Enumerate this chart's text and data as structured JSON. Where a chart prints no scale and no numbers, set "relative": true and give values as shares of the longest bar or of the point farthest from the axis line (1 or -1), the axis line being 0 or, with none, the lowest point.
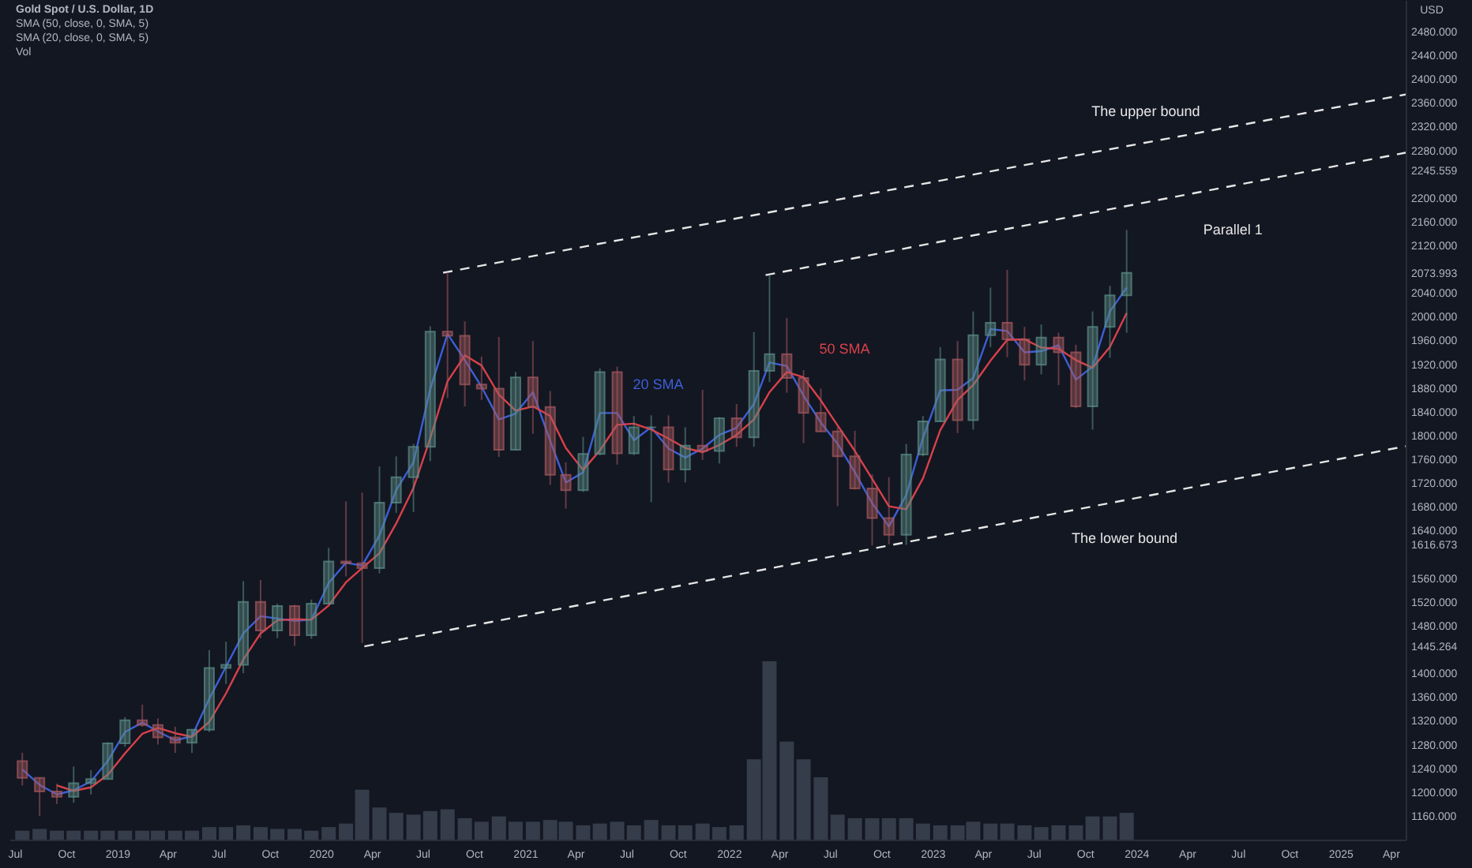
{
  "chart_data": [
    {
      "type": "candlestick",
      "title": "Gold Spot / U.S. Dollar, 1D",
      "ylabel": "USD",
      "x": [
        "2018-07-15",
        "2018-08-15",
        "2018-09-15",
        "2018-10-15",
        "2018-11-15",
        "2018-12-15",
        "2019-01-15",
        "2019-02-15",
        "2019-03-15",
        "2019-04-15",
        "2019-05-15",
        "2019-06-15",
        "2019-07-15",
        "2019-08-15",
        "2019-09-15",
        "2019-10-15",
        "2019-11-15",
        "2019-12-15",
        "2020-01-15",
        "2020-02-15",
        "2020-03-15",
        "2020-04-15",
        "2020-05-15",
        "2020-06-15",
        "2020-07-15",
        "2020-08-15",
        "2020-09-15",
        "2020-10-15",
        "2020-11-15",
        "2020-12-15",
        "2021-01-15",
        "2021-02-15",
        "2021-03-15",
        "2021-04-15",
        "2021-05-15",
        "2021-06-15",
        "2021-07-15",
        "2021-08-15",
        "2021-09-15",
        "2021-10-15",
        "2021-11-15",
        "2021-12-15",
        "2022-01-15",
        "2022-02-15",
        "2022-03-15",
        "2022-04-15",
        "2022-05-15",
        "2022-06-15",
        "2022-07-15",
        "2022-08-15",
        "2022-09-15",
        "2022-10-15",
        "2022-11-15",
        "2022-12-15",
        "2023-01-15",
        "2023-02-15",
        "2023-03-15",
        "2023-04-15",
        "2023-05-15",
        "2023-06-15",
        "2023-07-15",
        "2023-08-15",
        "2023-09-15",
        "2023-10-15",
        "2023-11-15",
        "2023-12-15"
      ],
      "ohlc": [
        [
          1252,
          1266,
          1211,
          1224
        ],
        [
          1224,
          1224,
          1160,
          1201
        ],
        [
          1201,
          1214,
          1180,
          1192
        ],
        [
          1192,
          1243,
          1182,
          1215
        ],
        [
          1215,
          1237,
          1196,
          1222
        ],
        [
          1222,
          1284,
          1221,
          1282
        ],
        [
          1282,
          1326,
          1276,
          1321
        ],
        [
          1321,
          1347,
          1310,
          1313
        ],
        [
          1313,
          1324,
          1280,
          1292
        ],
        [
          1292,
          1310,
          1266,
          1283
        ],
        [
          1283,
          1306,
          1266,
          1305
        ],
        [
          1305,
          1439,
          1301,
          1409
        ],
        [
          1409,
          1453,
          1382,
          1414
        ],
        [
          1414,
          1555,
          1400,
          1520
        ],
        [
          1520,
          1557,
          1459,
          1472
        ],
        [
          1472,
          1517,
          1459,
          1513
        ],
        [
          1513,
          1515,
          1446,
          1464
        ],
        [
          1464,
          1524,
          1458,
          1517
        ],
        [
          1517,
          1611,
          1517,
          1588
        ],
        [
          1588,
          1689,
          1563,
          1585
        ],
        [
          1585,
          1704,
          1451,
          1577
        ],
        [
          1577,
          1748,
          1568,
          1687
        ],
        [
          1687,
          1765,
          1670,
          1730
        ],
        [
          1730,
          1786,
          1671,
          1781
        ],
        [
          1781,
          1984,
          1757,
          1975
        ],
        [
          1975,
          2075,
          1863,
          1968
        ],
        [
          1968,
          1992,
          1849,
          1886
        ],
        [
          1886,
          1933,
          1860,
          1879
        ],
        [
          1879,
          1966,
          1764,
          1776
        ],
        [
          1776,
          1907,
          1775,
          1898
        ],
        [
          1898,
          1959,
          1803,
          1848
        ],
        [
          1848,
          1875,
          1717,
          1734
        ],
        [
          1734,
          1755,
          1677,
          1708
        ],
        [
          1708,
          1798,
          1705,
          1769
        ],
        [
          1769,
          1913,
          1767,
          1907
        ],
        [
          1907,
          1916,
          1751,
          1770
        ],
        [
          1770,
          1833,
          1767,
          1814
        ],
        [
          1814,
          1834,
          1688,
          1814
        ],
        [
          1814,
          1834,
          1721,
          1743
        ],
        [
          1743,
          1814,
          1721,
          1783
        ],
        [
          1783,
          1877,
          1759,
          1774
        ],
        [
          1774,
          1831,
          1753,
          1829
        ],
        [
          1829,
          1853,
          1781,
          1797
        ],
        [
          1797,
          1974,
          1781,
          1909
        ],
        [
          1909,
          2070,
          1890,
          1937
        ],
        [
          1937,
          1998,
          1872,
          1897
        ],
        [
          1897,
          1910,
          1787,
          1838
        ],
        [
          1838,
          1879,
          1806,
          1807
        ],
        [
          1807,
          1814,
          1681,
          1765
        ],
        [
          1765,
          1808,
          1709,
          1711
        ],
        [
          1711,
          1735,
          1615,
          1661
        ],
        [
          1661,
          1730,
          1617,
          1633
        ],
        [
          1633,
          1786,
          1616,
          1768
        ],
        [
          1768,
          1833,
          1765,
          1824
        ],
        [
          1824,
          1949,
          1823,
          1928
        ],
        [
          1928,
          1959,
          1804,
          1826
        ],
        [
          1826,
          2009,
          1810,
          1969
        ],
        [
          1969,
          2049,
          1949,
          1990
        ],
        [
          1990,
          2079,
          1932,
          1962
        ],
        [
          1962,
          1983,
          1893,
          1919
        ],
        [
          1919,
          1987,
          1903,
          1965
        ],
        [
          1965,
          1973,
          1885,
          1940
        ],
        [
          1940,
          1953,
          1846,
          1849
        ],
        [
          1849,
          2009,
          1810,
          1983
        ],
        [
          1983,
          2052,
          1931,
          2036
        ],
        [
          2036,
          2146,
          1973,
          2074
        ]
      ],
      "colors": [
        "#a85a60",
        "#a85a60",
        "#a85a60",
        "#5d8f88",
        "#5d8f88",
        "#5d8f88",
        "#5d8f88",
        "#a85a60",
        "#a85a60",
        "#a85a60",
        "#5d8f88",
        "#5d8f88",
        "#5d8f88",
        "#5d8f88",
        "#a85a60",
        "#5d8f88",
        "#a85a60",
        "#5d8f88",
        "#5d8f88",
        "#a85a60",
        "#a85a60",
        "#5d8f88",
        "#5d8f88",
        "#5d8f88",
        "#5d8f88",
        "#a85a60",
        "#a85a60",
        "#a85a60",
        "#a85a60",
        "#5d8f88",
        "#a85a60",
        "#a85a60",
        "#a85a60",
        "#5d8f88",
        "#5d8f88",
        "#a85a60",
        "#5d8f88",
        "#5d8f88",
        "#a85a60",
        "#5d8f88",
        "#a85a60",
        "#5d8f88",
        "#a85a60",
        "#5d8f88",
        "#5d8f88",
        "#a85a60",
        "#a85a60",
        "#a85a60",
        "#a85a60",
        "#a85a60",
        "#a85a60",
        "#a85a60",
        "#5d8f88",
        "#5d8f88",
        "#5d8f88",
        "#a85a60",
        "#5d8f88",
        "#5d8f88",
        "#a85a60",
        "#a85a60",
        "#5d8f88",
        "#a85a60",
        "#a85a60",
        "#5d8f88",
        "#5d8f88",
        "#5d8f88"
      ],
      "series": [
        {
          "name": "20 SMA",
          "type": "line",
          "color": "#3d5fd6",
          "values": [
            1238,
            1212,
            1196,
            1203,
            1218,
            1252,
            1301,
            1317,
            1302,
            1287,
            1294,
            1357,
            1411,
            1467,
            1496,
            1492,
            1488,
            1490,
            1552,
            1586,
            1581,
            1632,
            1708,
            1755,
            1878,
            1971,
            1927,
            1882,
            1827,
            1837,
            1873,
            1791,
            1721,
            1738,
            1838,
            1838,
            1792,
            1814,
            1778,
            1763,
            1778,
            1801,
            1813,
            1853,
            1923,
            1917,
            1867,
            1822,
            1786,
            1738,
            1686,
            1647,
            1700,
            1796,
            1876,
            1877,
            1897,
            1979,
            1976,
            1940,
            1942,
            1952,
            1894,
            1916,
            2009,
            2049
          ]
        },
        {
          "name": "50 SMA",
          "type": "line",
          "color": "#d9414a",
          "values": [
            null,
            null,
            1211,
            1202,
            1208,
            1229,
            1265,
            1298,
            1308,
            1299,
            1293,
            1318,
            1366,
            1423,
            1467,
            1489,
            1491,
            1490,
            1514,
            1553,
            1577,
            1602,
            1652,
            1712,
            1795,
            1891,
            1935,
            1918,
            1869,
            1842,
            1849,
            1833,
            1779,
            1742,
            1775,
            1818,
            1820,
            1810,
            1795,
            1779,
            1772,
            1784,
            1801,
            1827,
            1873,
            1907,
            1898,
            1859,
            1817,
            1774,
            1727,
            1681,
            1676,
            1728,
            1809,
            1860,
            1885,
            1926,
            1961,
            1962,
            1948,
            1946,
            1927,
            1914,
            1949,
            2006
          ]
        },
        {
          "name": "The upper bound",
          "type": "line",
          "color": "#e6e6e6",
          "line_style": "dashed",
          "x": [
            "2020-08-07",
            "2025-04-28"
          ],
          "values": [
            2073.993,
            2374
          ]
        },
        {
          "name": "Parallel 1",
          "type": "line",
          "color": "#e6e6e6",
          "line_style": "dashed",
          "x": [
            "2022-03-08",
            "2025-04-28"
          ],
          "values": [
            2070,
            2276
          ]
        },
        {
          "name": "The lower bound",
          "type": "line",
          "color": "#e6e6e6",
          "line_style": "dashed",
          "x": [
            "2020-03-19",
            "2025-04-28"
          ],
          "values": [
            1445.264,
            1782
          ]
        }
      ],
      "xlim": [
        "2018-06-22",
        "2025-04-28"
      ],
      "ylim": [
        1120,
        2533
      ],
      "xticks": [
        {
          "value": "2018-07-01",
          "label": "Jul"
        },
        {
          "value": "2018-10-01",
          "label": "Oct"
        },
        {
          "value": "2019-01-01",
          "label": "2019"
        },
        {
          "value": "2019-04-01",
          "label": "Apr"
        },
        {
          "value": "2019-07-01",
          "label": "Jul"
        },
        {
          "value": "2019-10-01",
          "label": "Oct"
        },
        {
          "value": "2020-01-01",
          "label": "2020"
        },
        {
          "value": "2020-04-01",
          "label": "Apr"
        },
        {
          "value": "2020-07-01",
          "label": "Jul"
        },
        {
          "value": "2020-10-01",
          "label": "Oct"
        },
        {
          "value": "2021-01-01",
          "label": "2021"
        },
        {
          "value": "2021-04-01",
          "label": "Apr"
        },
        {
          "value": "2021-07-01",
          "label": "Jul"
        },
        {
          "value": "2021-10-01",
          "label": "Oct"
        },
        {
          "value": "2022-01-01",
          "label": "2022"
        },
        {
          "value": "2022-04-01",
          "label": "Apr"
        },
        {
          "value": "2022-07-01",
          "label": "Jul"
        },
        {
          "value": "2022-10-01",
          "label": "Oct"
        },
        {
          "value": "2023-01-01",
          "label": "2023"
        },
        {
          "value": "2023-04-01",
          "label": "Apr"
        },
        {
          "value": "2023-07-01",
          "label": "Jul"
        },
        {
          "value": "2023-10-01",
          "label": "Oct"
        },
        {
          "value": "2024-01-01",
          "label": "2024"
        },
        {
          "value": "2024-04-01",
          "label": "Apr"
        },
        {
          "value": "2024-07-01",
          "label": "Jul"
        },
        {
          "value": "2024-10-01",
          "label": "Oct"
        },
        {
          "value": "2025-01-01",
          "label": "2025"
        },
        {
          "value": "2025-04-01",
          "label": "Apr"
        }
      ],
      "yticks": [
        {
          "value": 2480,
          "label": "2480.000"
        },
        {
          "value": 2440,
          "label": "2440.000"
        },
        {
          "value": 2400,
          "label": "2400.000"
        },
        {
          "value": 2360,
          "label": "2360.000"
        },
        {
          "value": 2320,
          "label": "2320.000"
        },
        {
          "value": 2280,
          "label": "2280.000"
        },
        2245.559,
        {
          "value": 2200,
          "label": "2200.000"
        },
        {
          "value": 2160,
          "label": "2160.000"
        },
        {
          "value": 2120,
          "label": "2120.000"
        },
        2073.993,
        {
          "value": 2040,
          "label": "2040.000"
        },
        {
          "value": 2000,
          "label": "2000.000"
        },
        {
          "value": 1960,
          "label": "1960.000"
        },
        {
          "value": 1920,
          "label": "1920.000"
        },
        {
          "value": 1880,
          "label": "1880.000"
        },
        {
          "value": 1840,
          "label": "1840.000"
        },
        {
          "value": 1800,
          "label": "1800.000"
        },
        {
          "value": 1760,
          "label": "1760.000"
        },
        {
          "value": 1720,
          "label": "1720.000"
        },
        {
          "value": 1680,
          "label": "1680.000"
        },
        {
          "value": 1640,
          "label": "1640.000"
        },
        1616.673,
        {
          "value": 1560,
          "label": "1560.000"
        },
        {
          "value": 1520,
          "label": "1520.000"
        },
        {
          "value": 1480,
          "label": "1480.000"
        },
        1445.264,
        {
          "value": 1400,
          "label": "1400.000"
        },
        {
          "value": 1360,
          "label": "1360.000"
        },
        {
          "value": 1320,
          "label": "1320.000"
        },
        {
          "value": 1280,
          "label": "1280.000"
        },
        {
          "value": 1240,
          "label": "1240.000"
        },
        {
          "value": 1200,
          "label": "1200.000"
        },
        {
          "value": 1160,
          "label": "1160.000"
        }
      ],
      "annotations": [
        "SMA (50, close, 0, SMA, 5)",
        "SMA (20, close, 0, SMA, 5)",
        "Vol"
      ]
    },
    {
      "type": "bar",
      "relative": true,
      "color": "#3a4150",
      "xlim": [
        "2018-06-22",
        "2025-04-28"
      ],
      "x": [
        "2018-07-15",
        "2018-08-15",
        "2018-09-15",
        "2018-10-15",
        "2018-11-15",
        "2018-12-15",
        "2019-01-15",
        "2019-02-15",
        "2019-03-15",
        "2019-04-15",
        "2019-05-15",
        "2019-06-15",
        "2019-07-15",
        "2019-08-15",
        "2019-09-15",
        "2019-10-15",
        "2019-11-15",
        "2019-12-15",
        "2020-01-15",
        "2020-02-15",
        "2020-03-15",
        "2020-04-15",
        "2020-05-15",
        "2020-06-15",
        "2020-07-15",
        "2020-08-15",
        "2020-09-15",
        "2020-10-15",
        "2020-11-15",
        "2020-12-15",
        "2021-01-15",
        "2021-02-15",
        "2021-03-15",
        "2021-04-15",
        "2021-05-15",
        "2021-06-15",
        "2021-07-15",
        "2021-08-15",
        "2021-09-15",
        "2021-10-15",
        "2021-11-15",
        "2021-12-15",
        "2022-01-15",
        "2022-02-15",
        "2022-03-15",
        "2022-04-15",
        "2022-05-15",
        "2022-06-15",
        "2022-07-15",
        "2022-08-15",
        "2022-09-15",
        "2022-10-15",
        "2022-11-15",
        "2022-12-15",
        "2023-01-15",
        "2023-02-15",
        "2023-03-15",
        "2023-04-15",
        "2023-05-15",
        "2023-06-15",
        "2023-07-15",
        "2023-08-15",
        "2023-09-15",
        "2023-10-15",
        "2023-11-15",
        "2023-12-15"
      ],
      "values": [
        0.05,
        0.06,
        0.05,
        0.05,
        0.05,
        0.05,
        0.05,
        0.05,
        0.05,
        0.05,
        0.05,
        0.07,
        0.07,
        0.08,
        0.07,
        0.06,
        0.06,
        0.05,
        0.07,
        0.09,
        0.28,
        0.18,
        0.15,
        0.14,
        0.16,
        0.17,
        0.12,
        0.1,
        0.13,
        0.1,
        0.1,
        0.11,
        0.1,
        0.08,
        0.09,
        0.1,
        0.08,
        0.11,
        0.08,
        0.08,
        0.09,
        0.07,
        0.08,
        0.45,
        1,
        0.55,
        0.45,
        0.35,
        0.14,
        0.12,
        0.12,
        0.12,
        0.12,
        0.09,
        0.08,
        0.08,
        0.1,
        0.09,
        0.09,
        0.08,
        0.07,
        0.08,
        0.08,
        0.13,
        0.13,
        0.15
      ]
    }
  ]
}
